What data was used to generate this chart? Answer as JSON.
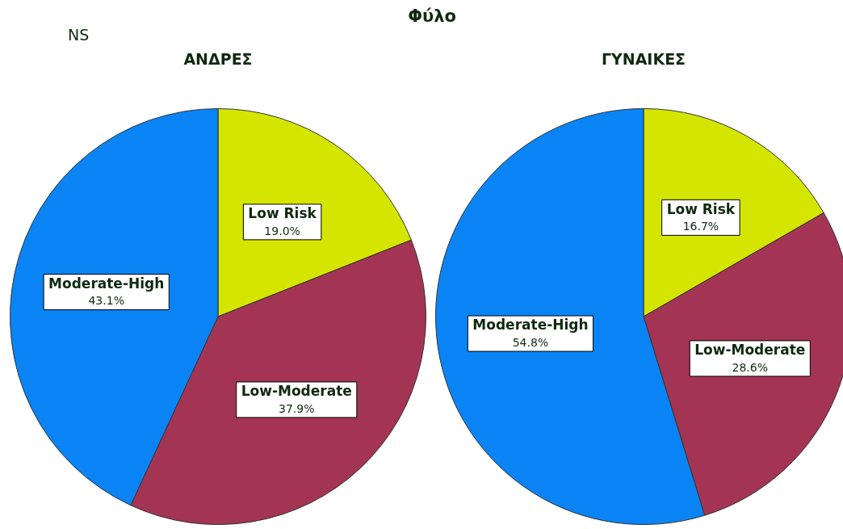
{
  "chart_data": [
    {
      "type": "other",
      "title": "Φύλο",
      "annotations": [
        "NS"
      ]
    },
    {
      "type": "pie",
      "title": "ΑΝΔΡΕΣ",
      "categories": [
        "Low Risk",
        "Low-Moderate",
        "Moderate-High"
      ],
      "values": [
        19.0,
        37.9,
        43.1
      ],
      "value_labels": [
        "19.0%",
        "37.9%",
        "43.1%"
      ],
      "colors": [
        "#d4e600",
        "#a33454",
        "#0a84f5"
      ]
    },
    {
      "type": "pie",
      "title": "ΓΥΝΑΙΚΕΣ",
      "categories": [
        "Low Risk",
        "Low-Moderate",
        "Moderate-High"
      ],
      "values": [
        16.7,
        28.6,
        54.8
      ],
      "value_labels": [
        "16.7%",
        "28.6%",
        "54.8%"
      ],
      "colors": [
        "#d4e600",
        "#a33454",
        "#0a84f5"
      ]
    }
  ]
}
